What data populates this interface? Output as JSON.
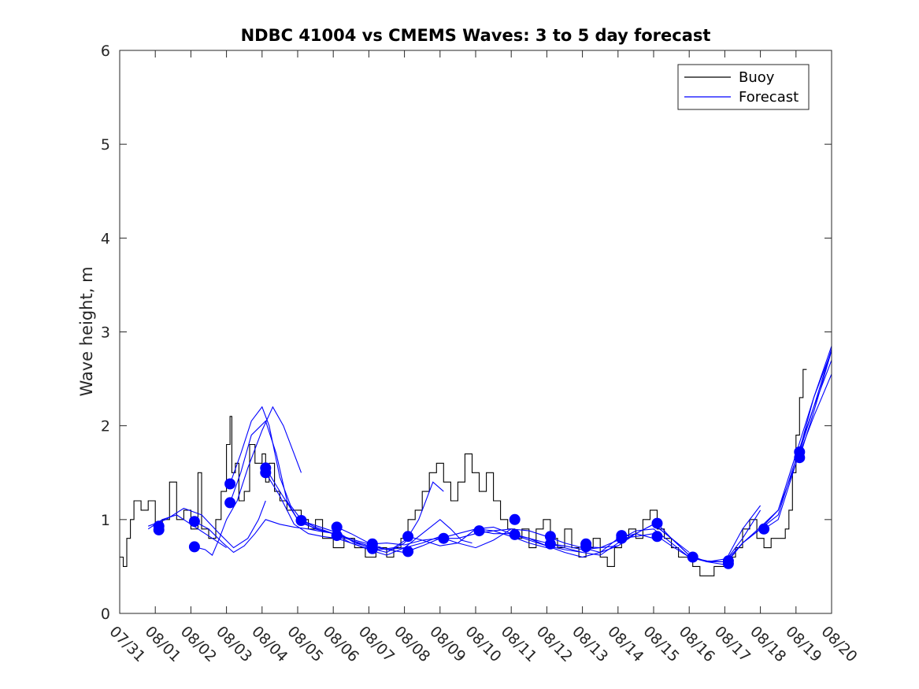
{
  "chart_data": {
    "type": "line",
    "title": "NDBC 41004 vs CMEMS Waves: 3 to 5 day forecast",
    "xlabel": "",
    "ylabel": "Wave height, m",
    "xlim": [
      "07/31",
      "08/20"
    ],
    "ylim": [
      0,
      6
    ],
    "y_ticks": [
      0,
      1,
      2,
      3,
      4,
      5,
      6
    ],
    "x_ticks": [
      "07/31",
      "08/01",
      "08/02",
      "08/03",
      "08/04",
      "08/05",
      "08/06",
      "08/07",
      "08/08",
      "08/09",
      "08/10",
      "08/11",
      "08/12",
      "08/13",
      "08/14",
      "08/15",
      "08/16",
      "08/17",
      "08/18",
      "08/19",
      "08/20"
    ],
    "grid": false,
    "legend": {
      "placement": "top-right",
      "entries": [
        "Buoy",
        "Forecast"
      ]
    },
    "colors": {
      "buoy": "#000000",
      "forecast": "#0000ff"
    },
    "buoy": {
      "name": "Buoy",
      "x": [
        0.0,
        0.1,
        0.2,
        0.3,
        0.4,
        0.6,
        0.8,
        1.0,
        1.2,
        1.4,
        1.6,
        1.8,
        2.0,
        2.2,
        2.3,
        2.5,
        2.7,
        2.85,
        3.0,
        3.1,
        3.15,
        3.25,
        3.35,
        3.5,
        3.65,
        3.8,
        4.0,
        4.1,
        4.2,
        4.35,
        4.5,
        4.7,
        4.9,
        5.1,
        5.3,
        5.5,
        5.7,
        6.0,
        6.3,
        6.6,
        6.9,
        7.2,
        7.5,
        7.7,
        7.9,
        8.1,
        8.3,
        8.5,
        8.7,
        8.9,
        9.1,
        9.3,
        9.5,
        9.7,
        9.9,
        10.1,
        10.3,
        10.5,
        10.7,
        10.9,
        11.1,
        11.3,
        11.5,
        11.7,
        11.9,
        12.1,
        12.3,
        12.5,
        12.7,
        12.9,
        13.1,
        13.3,
        13.5,
        13.7,
        13.9,
        14.1,
        14.3,
        14.5,
        14.7,
        14.9,
        15.1,
        15.3,
        15.5,
        15.7,
        15.9,
        16.1,
        16.3,
        16.5,
        16.7,
        16.9,
        17.1,
        17.3,
        17.5,
        17.7,
        17.9,
        18.1,
        18.3,
        18.5,
        18.7,
        18.8,
        18.9,
        19.0,
        19.1,
        19.2,
        19.3
      ],
      "y": [
        0.6,
        0.5,
        0.8,
        1.0,
        1.2,
        1.1,
        1.2,
        0.9,
        1.0,
        1.4,
        1.0,
        1.1,
        0.9,
        1.5,
        0.9,
        0.8,
        1.0,
        1.3,
        1.8,
        2.1,
        1.5,
        1.6,
        1.2,
        1.3,
        1.8,
        1.6,
        1.7,
        1.4,
        1.6,
        1.3,
        1.2,
        1.1,
        1.1,
        1.0,
        0.9,
        1.0,
        0.8,
        0.7,
        0.8,
        0.7,
        0.6,
        0.7,
        0.6,
        0.7,
        0.8,
        1.0,
        1.1,
        1.3,
        1.5,
        1.6,
        1.4,
        1.2,
        1.4,
        1.7,
        1.5,
        1.3,
        1.5,
        1.2,
        1.0,
        0.9,
        0.8,
        0.9,
        0.7,
        0.9,
        1.0,
        0.8,
        0.7,
        0.9,
        0.7,
        0.6,
        0.7,
        0.8,
        0.6,
        0.5,
        0.7,
        0.8,
        0.9,
        0.8,
        1.0,
        1.1,
        0.9,
        0.8,
        0.7,
        0.6,
        0.6,
        0.5,
        0.4,
        0.4,
        0.5,
        0.5,
        0.6,
        0.7,
        0.9,
        1.0,
        0.8,
        0.7,
        0.8,
        0.8,
        0.9,
        1.1,
        1.5,
        1.9,
        2.3,
        2.6,
        2.6
      ]
    },
    "forecast_runs": [
      {
        "x": [
          0.8,
          1.2,
          1.6,
          2.0,
          2.4,
          2.8,
          3.0
        ],
        "y": [
          0.9,
          1.0,
          1.05,
          0.95,
          0.85,
          0.75,
          0.7
        ]
      },
      {
        "x": [
          0.8,
          1.3,
          1.8,
          2.3,
          2.8,
          3.2,
          3.6,
          3.9,
          4.1
        ],
        "y": [
          0.93,
          1.0,
          1.12,
          1.05,
          0.85,
          0.7,
          0.8,
          1.0,
          1.2
        ]
      },
      {
        "x": [
          2.1,
          2.4,
          2.6,
          2.8,
          3.0,
          3.3,
          3.6,
          4.0,
          4.3,
          4.6,
          4.9,
          5.1
        ],
        "y": [
          0.71,
          0.68,
          0.62,
          0.8,
          1.0,
          1.2,
          1.55,
          1.95,
          2.2,
          2.0,
          1.7,
          1.5
        ]
      },
      {
        "x": [
          2.1,
          2.5,
          2.9,
          3.2,
          3.5,
          3.8,
          4.1,
          4.5,
          4.9,
          5.3,
          5.7,
          6.1
        ],
        "y": [
          0.98,
          0.9,
          0.75,
          0.65,
          0.72,
          0.85,
          1.0,
          0.95,
          0.92,
          0.9,
          0.87,
          0.85
        ]
      },
      {
        "x": [
          3.1,
          3.4,
          3.7,
          4.1,
          4.4,
          4.7,
          5.0,
          5.4,
          5.8,
          6.2,
          6.6,
          7.1
        ],
        "y": [
          1.18,
          1.5,
          1.9,
          2.05,
          1.7,
          1.2,
          1.0,
          0.95,
          0.9,
          0.85,
          0.75,
          0.7
        ]
      },
      {
        "x": [
          3.1,
          3.4,
          3.7,
          4.0,
          4.2,
          4.5,
          4.8,
          5.2,
          5.7,
          6.2,
          6.7,
          7.1
        ],
        "y": [
          1.38,
          1.7,
          2.05,
          2.2,
          2.0,
          1.45,
          1.15,
          0.95,
          0.88,
          0.83,
          0.77,
          0.73
        ]
      },
      {
        "x": [
          4.1,
          4.5,
          4.9,
          5.3,
          5.7,
          6.1,
          6.5,
          6.9,
          7.3,
          7.7,
          8.1
        ],
        "y": [
          1.5,
          1.25,
          0.95,
          0.85,
          0.82,
          0.8,
          0.75,
          0.7,
          0.68,
          0.7,
          0.8
        ]
      },
      {
        "x": [
          4.1,
          4.5,
          5.0,
          5.5,
          6.0,
          6.5,
          7.0,
          7.5,
          8.0,
          8.5,
          9.0
        ],
        "y": [
          1.55,
          1.3,
          1.0,
          0.9,
          0.85,
          0.78,
          0.72,
          0.68,
          0.7,
          0.75,
          0.82
        ]
      },
      {
        "x": [
          5.1,
          5.5,
          6.0,
          6.5,
          7.0,
          7.5,
          8.0,
          8.4,
          8.8,
          9.1
        ],
        "y": [
          0.99,
          0.92,
          0.85,
          0.78,
          0.7,
          0.65,
          0.75,
          1.0,
          1.4,
          1.3
        ]
      },
      {
        "x": [
          6.1,
          6.5,
          7.0,
          7.5,
          8.0,
          8.5,
          9.0,
          9.5,
          10.0,
          10.5,
          11.0
        ],
        "y": [
          0.92,
          0.85,
          0.75,
          0.68,
          0.65,
          0.72,
          0.8,
          0.8,
          0.85,
          0.88,
          0.9
        ]
      },
      {
        "x": [
          6.1,
          6.5,
          7.0,
          7.5,
          8.0,
          8.5,
          9.0,
          9.3,
          9.6,
          9.9
        ],
        "y": [
          0.83,
          0.75,
          0.68,
          0.62,
          0.7,
          0.85,
          1.0,
          0.9,
          0.78,
          0.75
        ]
      },
      {
        "x": [
          7.1,
          7.5,
          8.0,
          8.5,
          9.0,
          9.5,
          10.0,
          10.5,
          11.0,
          11.5,
          12.0
        ],
        "y": [
          0.74,
          0.75,
          0.73,
          0.78,
          0.8,
          0.85,
          0.9,
          0.88,
          0.82,
          0.75,
          0.7
        ]
      },
      {
        "x": [
          8.1,
          8.5,
          9.0,
          9.5,
          10.0,
          10.5,
          11.0,
          11.5,
          12.0,
          12.5,
          13.0
        ],
        "y": [
          0.82,
          0.78,
          0.72,
          0.75,
          0.9,
          0.92,
          0.85,
          0.78,
          0.72,
          0.68,
          0.65
        ]
      },
      {
        "x": [
          9.1,
          9.5,
          10.0,
          10.5,
          11.0,
          11.5,
          12.0,
          12.5,
          13.0,
          13.5,
          14.0
        ],
        "y": [
          0.8,
          0.75,
          0.7,
          0.78,
          0.9,
          0.88,
          0.82,
          0.75,
          0.7,
          0.65,
          0.72
        ]
      },
      {
        "x": [
          10.1,
          10.5,
          11.0,
          11.5,
          12.0,
          12.5,
          13.0,
          13.5,
          14.0,
          14.5,
          15.0
        ],
        "y": [
          0.88,
          0.85,
          0.85,
          0.8,
          0.72,
          0.65,
          0.6,
          0.65,
          0.8,
          0.85,
          0.8
        ]
      },
      {
        "x": [
          11.1,
          11.5,
          12.0,
          12.5,
          13.0,
          13.5,
          14.0,
          14.5,
          15.0,
          15.5,
          16.0
        ],
        "y": [
          0.84,
          0.8,
          0.75,
          0.7,
          0.65,
          0.62,
          0.75,
          0.85,
          0.95,
          0.8,
          0.65
        ]
      },
      {
        "x": [
          12.1,
          12.5,
          13.0,
          13.5,
          14.0,
          14.5,
          15.0,
          15.5,
          16.0,
          16.5,
          17.0
        ],
        "y": [
          0.74,
          0.72,
          0.68,
          0.7,
          0.78,
          0.88,
          0.9,
          0.75,
          0.6,
          0.55,
          0.58
        ]
      },
      {
        "x": [
          13.1,
          13.5,
          14.0,
          14.5,
          15.0,
          15.5,
          16.0,
          16.5,
          17.0,
          17.5,
          18.0
        ],
        "y": [
          0.71,
          0.7,
          0.72,
          0.85,
          0.95,
          0.8,
          0.62,
          0.55,
          0.55,
          0.8,
          1.1
        ]
      },
      {
        "x": [
          14.1,
          14.5,
          15.0,
          15.5,
          16.0,
          16.5,
          17.0,
          17.5,
          18.0
        ],
        "y": [
          0.8,
          0.82,
          0.85,
          0.72,
          0.6,
          0.56,
          0.55,
          0.9,
          1.15
        ]
      },
      {
        "x": [
          15.1,
          15.5,
          16.0,
          16.5,
          17.0,
          17.5,
          18.0,
          18.5,
          19.0,
          19.5,
          20.0
        ],
        "y": [
          0.96,
          0.8,
          0.62,
          0.55,
          0.55,
          0.75,
          0.9,
          1.1,
          1.6,
          2.3,
          2.85
        ]
      },
      {
        "x": [
          16.1,
          16.5,
          17.0,
          17.5,
          18.0,
          18.5,
          19.0,
          19.5,
          20.0
        ],
        "y": [
          0.6,
          0.55,
          0.52,
          0.75,
          0.92,
          1.1,
          1.7,
          2.3,
          2.8
        ]
      },
      {
        "x": [
          17.1,
          17.5,
          18.0,
          18.5,
          19.0,
          19.5,
          20.0
        ],
        "y": [
          0.56,
          0.75,
          0.9,
          1.05,
          1.65,
          2.2,
          2.7
        ]
      },
      {
        "x": [
          18.1,
          18.5,
          19.0,
          19.5,
          20.0
        ],
        "y": [
          0.9,
          1.0,
          1.6,
          2.1,
          2.55
        ]
      },
      {
        "x": [
          19.1,
          19.5,
          20.0
        ],
        "y": [
          1.72,
          2.2,
          2.82
        ]
      },
      {
        "x": [
          19.1,
          19.5,
          20.0
        ],
        "y": [
          1.66,
          2.15,
          2.8
        ]
      }
    ],
    "forecast_markers": {
      "x": [
        1.1,
        1.1,
        2.1,
        2.1,
        3.1,
        3.1,
        4.1,
        4.1,
        5.1,
        6.1,
        6.1,
        7.1,
        7.1,
        8.1,
        8.1,
        9.1,
        10.1,
        11.1,
        11.1,
        12.1,
        12.1,
        13.1,
        13.1,
        14.1,
        14.1,
        15.1,
        15.1,
        16.1,
        17.1,
        17.1,
        18.1,
        19.1,
        19.1
      ],
      "y": [
        0.89,
        0.93,
        0.71,
        0.98,
        1.18,
        1.38,
        1.5,
        1.55,
        0.99,
        0.92,
        0.83,
        0.74,
        0.69,
        0.66,
        0.82,
        0.8,
        0.88,
        1.0,
        0.84,
        0.74,
        0.82,
        0.71,
        0.74,
        0.8,
        0.83,
        0.82,
        0.96,
        0.6,
        0.53,
        0.56,
        0.9,
        1.66,
        1.72
      ]
    }
  }
}
